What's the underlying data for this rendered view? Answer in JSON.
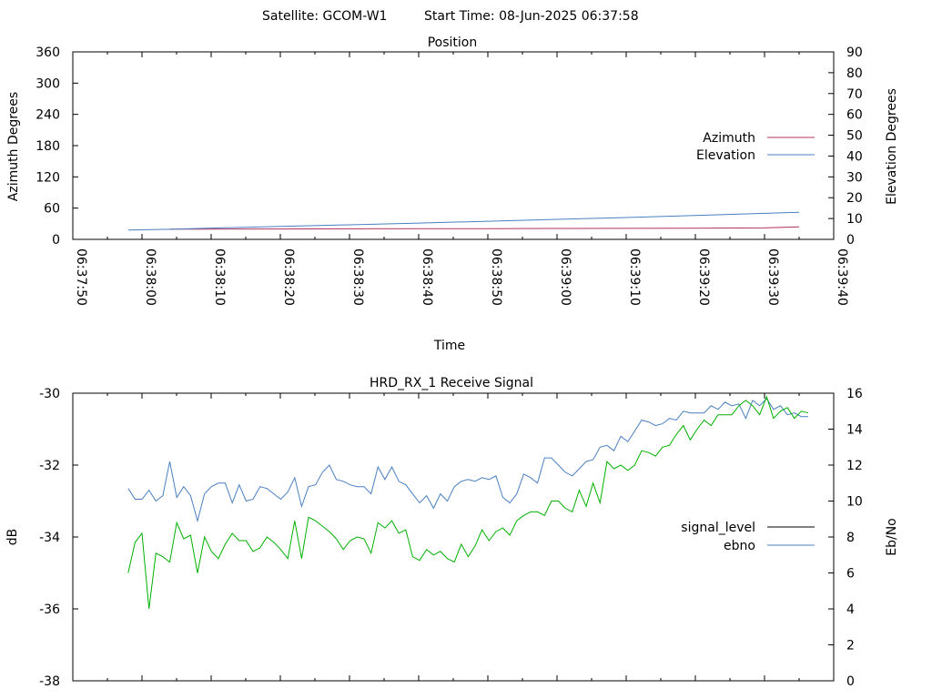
{
  "header": {
    "satellite": "Satellite: GCOM-W1",
    "start_time": "Start Time: 08-Jun-2025 06:37:58"
  },
  "chart_data": [
    {
      "type": "line",
      "title": "Position",
      "xlabel": "Time",
      "ylabel": "Azimuth Degrees",
      "y2label": "Elevation Degrees",
      "xlim": [
        "06:37:50",
        "06:39:40"
      ],
      "ylim": [
        0,
        360
      ],
      "y2lim": [
        0,
        90
      ],
      "xticks": [
        "06:37:50",
        "06:38:00",
        "06:38:10",
        "06:38:20",
        "06:38:30",
        "06:38:40",
        "06:38:50",
        "06:39:00",
        "06:39:10",
        "06:39:20",
        "06:39:30",
        "06:39:40"
      ],
      "yticks": [
        "0",
        "60",
        "120",
        "180",
        "240",
        "300",
        "360"
      ],
      "y2ticks": [
        "0",
        "10",
        "20",
        "30",
        "40",
        "50",
        "60",
        "70",
        "80",
        "90"
      ],
      "legend_position": "right",
      "series": [
        {
          "name": "Azimuth",
          "axis": "y",
          "color": "#b03060",
          "points": [
            [
              "06:38:04",
              19.7
            ],
            [
              "06:38:10",
              19.8
            ],
            [
              "06:38:20",
              20.0
            ],
            [
              "06:38:30",
              20.2
            ],
            [
              "06:38:40",
              20.4
            ],
            [
              "06:38:50",
              20.6
            ],
            [
              "06:39:00",
              20.9
            ],
            [
              "06:39:10",
              21.2
            ],
            [
              "06:39:20",
              21.5
            ],
            [
              "06:39:30",
              22.0
            ],
            [
              "06:39:35",
              24.0
            ]
          ]
        },
        {
          "name": "Elevation",
          "axis": "y2",
          "color": "#4a7fc0",
          "points": [
            [
              "06:37:58",
              4.5
            ],
            [
              "06:38:05",
              4.9
            ],
            [
              "06:38:10",
              5.4
            ],
            [
              "06:38:20",
              6.2
            ],
            [
              "06:38:30",
              7.0
            ],
            [
              "06:38:40",
              7.8
            ],
            [
              "06:38:50",
              8.7
            ],
            [
              "06:39:00",
              9.6
            ],
            [
              "06:39:10",
              10.5
            ],
            [
              "06:39:20",
              11.5
            ],
            [
              "06:39:30",
              12.5
            ],
            [
              "06:39:35",
              13.0
            ]
          ]
        }
      ]
    },
    {
      "type": "line",
      "title": "HRD_RX_1 Receive Signal",
      "ylabel": "dB",
      "y2label": "Eb/No",
      "ylim": [
        -38,
        -30
      ],
      "y2lim": [
        0,
        16
      ],
      "yticks": [
        "-30",
        "-32",
        "-34",
        "-36",
        "-38"
      ],
      "y2ticks": [
        "0",
        "2",
        "4",
        "6",
        "8",
        "10",
        "12",
        "14",
        "16"
      ],
      "legend_position": "right",
      "series": [
        {
          "name": "signal_level",
          "axis": "y",
          "color": "#000000",
          "values": []
        },
        {
          "name": "ebno",
          "axis": "y2",
          "color": "#4a7fc0",
          "values": [
            10.7,
            10.1,
            10.1,
            10.6,
            10.0,
            10.3,
            12.2,
            10.2,
            10.8,
            10.3,
            8.9,
            10.4,
            10.8,
            11.0,
            11.0,
            9.9,
            10.9,
            10.0,
            10.1,
            10.8,
            10.7,
            10.4,
            10.1,
            10.5,
            11.3,
            9.7,
            10.8,
            10.9,
            11.6,
            12.0,
            11.2,
            11.1,
            10.9,
            10.8,
            10.8,
            10.4,
            11.9,
            11.2,
            11.9,
            11.1,
            10.9,
            10.4,
            9.9,
            10.3,
            9.6,
            10.4,
            10.0,
            10.8,
            11.1,
            11.2,
            11.1,
            11.3,
            11.2,
            11.4,
            10.2,
            9.9,
            10.4,
            11.5,
            11.3,
            11.0,
            12.4,
            12.4,
            12.0,
            11.6,
            11.4,
            11.8,
            12.2,
            12.3,
            13.0,
            13.1,
            12.8,
            13.6,
            13.3,
            13.9,
            14.5,
            14.4,
            14.2,
            14.3,
            14.6,
            14.5,
            15.0,
            14.9,
            14.9,
            14.9,
            15.3,
            15.1,
            15.5,
            15.3,
            15.4,
            14.6,
            15.6,
            15.3,
            15.7,
            15.1,
            15.3,
            14.8,
            14.9,
            14.7,
            14.7
          ],
          "secondary_color": "#00b000",
          "secondary_values": [
            6.0,
            7.7,
            8.2,
            4.0,
            7.1,
            6.9,
            6.6,
            8.8,
            7.9,
            8.1,
            6.0,
            8.0,
            7.2,
            6.8,
            7.6,
            8.2,
            7.8,
            7.8,
            7.2,
            7.4,
            8.0,
            7.7,
            7.3,
            6.8,
            8.9,
            6.8,
            9.1,
            8.9,
            8.6,
            8.3,
            7.9,
            7.3,
            7.8,
            8.0,
            7.9,
            7.1,
            8.8,
            8.5,
            8.9,
            8.2,
            8.4,
            6.9,
            6.7,
            7.3,
            7.0,
            7.2,
            6.8,
            6.6,
            7.6,
            6.9,
            7.5,
            8.4,
            7.8,
            8.3,
            8.5,
            8.1,
            8.9,
            9.2,
            9.4,
            9.4,
            9.2,
            10.0,
            10.0,
            9.6,
            9.4,
            10.6,
            9.7,
            11.0,
            9.9,
            12.2,
            11.8,
            12.0,
            11.7,
            12.0,
            12.8,
            12.7,
            12.5,
            13.0,
            13.1,
            13.7,
            14.2,
            13.4,
            14.0,
            14.5,
            14.2,
            14.8,
            14.8,
            14.8,
            15.3,
            15.6,
            15.3,
            14.8,
            15.8,
            14.6,
            15.0,
            15.2,
            14.6,
            15.0,
            14.9
          ]
        }
      ]
    }
  ]
}
